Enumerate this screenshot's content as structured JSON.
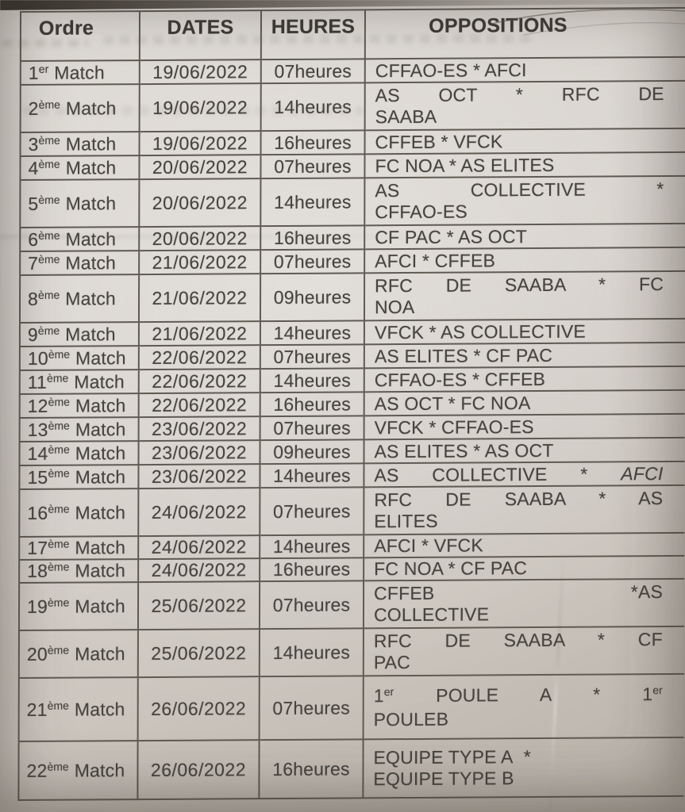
{
  "colors": {
    "paper": "#d6d1ca",
    "ink": "#47443f",
    "line": "#5f5b53"
  },
  "table": {
    "headers": [
      "Ordre",
      "DATES",
      "HEURES",
      "OPPOSITIONS"
    ],
    "rows": [
      {
        "ordinal": {
          "num": "1",
          "suffix": "er",
          "label": "Match"
        },
        "date": "19/06/2022",
        "time": "07heures",
        "opposition": {
          "lines": [
            {
              "spread": false,
              "segments": [
                {
                  "t": "CFFAO-ES * AFCI"
                }
              ]
            }
          ]
        }
      },
      {
        "ordinal": {
          "num": "2",
          "suffix": "ème",
          "label": "Match"
        },
        "date": "19/06/2022",
        "time": "14heures",
        "opposition": {
          "lines": [
            {
              "spread": true,
              "segments": [
                {
                  "t": "AS OCT * RFC DE"
                }
              ]
            },
            {
              "spread": false,
              "segments": [
                {
                  "t": "SAABA"
                }
              ]
            }
          ]
        }
      },
      {
        "ordinal": {
          "num": "3",
          "suffix": "ème",
          "label": "Match"
        },
        "date": "19/06/2022",
        "time": "16heures",
        "opposition": {
          "lines": [
            {
              "spread": false,
              "segments": [
                {
                  "t": "CFFEB * VFCK"
                }
              ]
            }
          ]
        }
      },
      {
        "ordinal": {
          "num": "4",
          "suffix": "ème",
          "label": "Match"
        },
        "date": "20/06/2022",
        "time": "07heures",
        "opposition": {
          "lines": [
            {
              "spread": false,
              "segments": [
                {
                  "t": "FC NOA * AS ELITES"
                }
              ]
            }
          ]
        }
      },
      {
        "ordinal": {
          "num": "5",
          "suffix": "ème",
          "label": "Match"
        },
        "date": "20/06/2022",
        "time": "14heures",
        "opposition": {
          "lines": [
            {
              "spread": true,
              "segments": [
                {
                  "t": "AS COLLECTIVE *"
                }
              ]
            },
            {
              "spread": false,
              "segments": [
                {
                  "t": "CFFAO-ES"
                }
              ]
            }
          ]
        }
      },
      {
        "ordinal": {
          "num": "6",
          "suffix": "ème",
          "label": "Match"
        },
        "date": "20/06/2022",
        "time": "16heures",
        "opposition": {
          "lines": [
            {
              "spread": false,
              "segments": [
                {
                  "t": "CF PAC * AS OCT"
                }
              ]
            }
          ]
        }
      },
      {
        "ordinal": {
          "num": "7",
          "suffix": "ème",
          "label": "Match"
        },
        "date": "21/06/2022",
        "time": "07heures",
        "opposition": {
          "lines": [
            {
              "spread": false,
              "segments": [
                {
                  "t": "AFCI * CFFEB"
                }
              ]
            }
          ]
        }
      },
      {
        "ordinal": {
          "num": "8",
          "suffix": "ème",
          "label": "Match"
        },
        "date": "21/06/2022",
        "time": "09heures",
        "opposition": {
          "lines": [
            {
              "spread": true,
              "segments": [
                {
                  "t": "RFC DE SAABA * FC"
                }
              ]
            },
            {
              "spread": false,
              "segments": [
                {
                  "t": "NOA"
                }
              ]
            }
          ]
        }
      },
      {
        "ordinal": {
          "num": "9",
          "suffix": "ème",
          "label": "Match"
        },
        "date": "21/06/2022",
        "time": "14heures",
        "opposition": {
          "lines": [
            {
              "spread": false,
              "segments": [
                {
                  "t": "VFCK * AS COLLECTIVE"
                }
              ]
            }
          ]
        }
      },
      {
        "ordinal": {
          "num": "10",
          "suffix": "ème",
          "label": "Match"
        },
        "date": "22/06/2022",
        "time": "07heures",
        "opposition": {
          "lines": [
            {
              "spread": false,
              "segments": [
                {
                  "t": "AS ELITES * CF PAC"
                }
              ]
            }
          ]
        }
      },
      {
        "ordinal": {
          "num": "11",
          "suffix": "ème",
          "label": "Match"
        },
        "date": "22/06/2022",
        "time": "14heures",
        "opposition": {
          "lines": [
            {
              "spread": false,
              "segments": [
                {
                  "t": "CFFAO-ES * CFFEB"
                }
              ]
            }
          ]
        }
      },
      {
        "ordinal": {
          "num": "12",
          "suffix": "ème",
          "label": "Match"
        },
        "date": "22/06/2022",
        "time": "16heures",
        "opposition": {
          "lines": [
            {
              "spread": false,
              "segments": [
                {
                  "t": "AS OCT * FC NOA"
                }
              ]
            }
          ]
        }
      },
      {
        "ordinal": {
          "num": "13",
          "suffix": "ème",
          "label": "Match"
        },
        "date": "23/06/2022",
        "time": "07heures",
        "opposition": {
          "lines": [
            {
              "spread": false,
              "segments": [
                {
                  "t": "VFCK * CFFAO-ES"
                }
              ]
            }
          ]
        }
      },
      {
        "ordinal": {
          "num": "14",
          "suffix": "ème",
          "label": "Match"
        },
        "date": "23/06/2022",
        "time": "09heures",
        "opposition": {
          "lines": [
            {
              "spread": false,
              "segments": [
                {
                  "t": "AS ELITES * AS OCT"
                }
              ]
            }
          ]
        }
      },
      {
        "ordinal": {
          "num": "15",
          "suffix": "ème",
          "label": "Match"
        },
        "date": "23/06/2022",
        "time": "14heures",
        "opposition": {
          "lines": [
            {
              "spread": true,
              "segments": [
                {
                  "t": "AS COLLECTIVE * "
                },
                {
                  "t": "AFCI",
                  "italic": true
                }
              ]
            }
          ]
        }
      },
      {
        "ordinal": {
          "num": "16",
          "suffix": "ème",
          "label": "Match"
        },
        "date": "24/06/2022",
        "time": "07heures",
        "opposition": {
          "lines": [
            {
              "spread": true,
              "segments": [
                {
                  "t": "RFC DE SAABA * AS"
                }
              ]
            },
            {
              "spread": false,
              "segments": [
                {
                  "t": "ELITES"
                }
              ]
            }
          ]
        }
      },
      {
        "ordinal": {
          "num": "17",
          "suffix": "ème",
          "label": "Match"
        },
        "date": "24/06/2022",
        "time": "14heures",
        "opposition": {
          "lines": [
            {
              "spread": false,
              "segments": [
                {
                  "t": "AFCI * VFCK"
                }
              ]
            }
          ]
        }
      },
      {
        "ordinal": {
          "num": "18",
          "suffix": "ème",
          "label": "Match"
        },
        "date": "24/06/2022",
        "time": "16heures",
        "opposition": {
          "lines": [
            {
              "spread": false,
              "segments": [
                {
                  "t": "FC NOA * CF PAC"
                }
              ]
            }
          ]
        }
      },
      {
        "ordinal": {
          "num": "19",
          "suffix": "ème",
          "label": "Match"
        },
        "date": "25/06/2022",
        "time": "07heures",
        "opposition": {
          "lines": [
            {
              "spread": true,
              "segments": [
                {
                  "t": "CFFEB *AS"
                }
              ]
            },
            {
              "spread": false,
              "segments": [
                {
                  "t": "COLLECTIVE"
                }
              ]
            }
          ]
        }
      },
      {
        "ordinal": {
          "num": "20",
          "suffix": "ème",
          "label": "Match"
        },
        "date": "25/06/2022",
        "time": "14heures",
        "opposition": {
          "lines": [
            {
              "spread": true,
              "segments": [
                {
                  "t": "RFC DE SAABA * CF"
                }
              ]
            },
            {
              "spread": false,
              "segments": [
                {
                  "t": "PAC"
                }
              ]
            }
          ]
        }
      },
      {
        "ordinal": {
          "num": "21",
          "suffix": "ème",
          "label": "Match"
        },
        "date": "26/06/2022",
        "time": "07heures",
        "opposition": {
          "lines": [
            {
              "spread": true,
              "segments": [
                {
                  "t": "1"
                },
                {
                  "sup": "er"
                },
                {
                  "t": " POULE A * 1"
                },
                {
                  "sup": "er"
                }
              ]
            },
            {
              "spread": false,
              "segments": [
                {
                  "t": "POULEB"
                }
              ]
            }
          ]
        }
      },
      {
        "ordinal": {
          "num": "22",
          "suffix": "ème",
          "label": "Match"
        },
        "date": "26/06/2022",
        "time": "16heures",
        "opposition": {
          "lines": [
            {
              "spread": false,
              "segments": [
                {
                  "t": "EQUIPE TYPE A  *"
                }
              ]
            },
            {
              "spread": false,
              "segments": [
                {
                  "t": "EQUIPE TYPE B"
                }
              ]
            }
          ]
        }
      }
    ]
  }
}
